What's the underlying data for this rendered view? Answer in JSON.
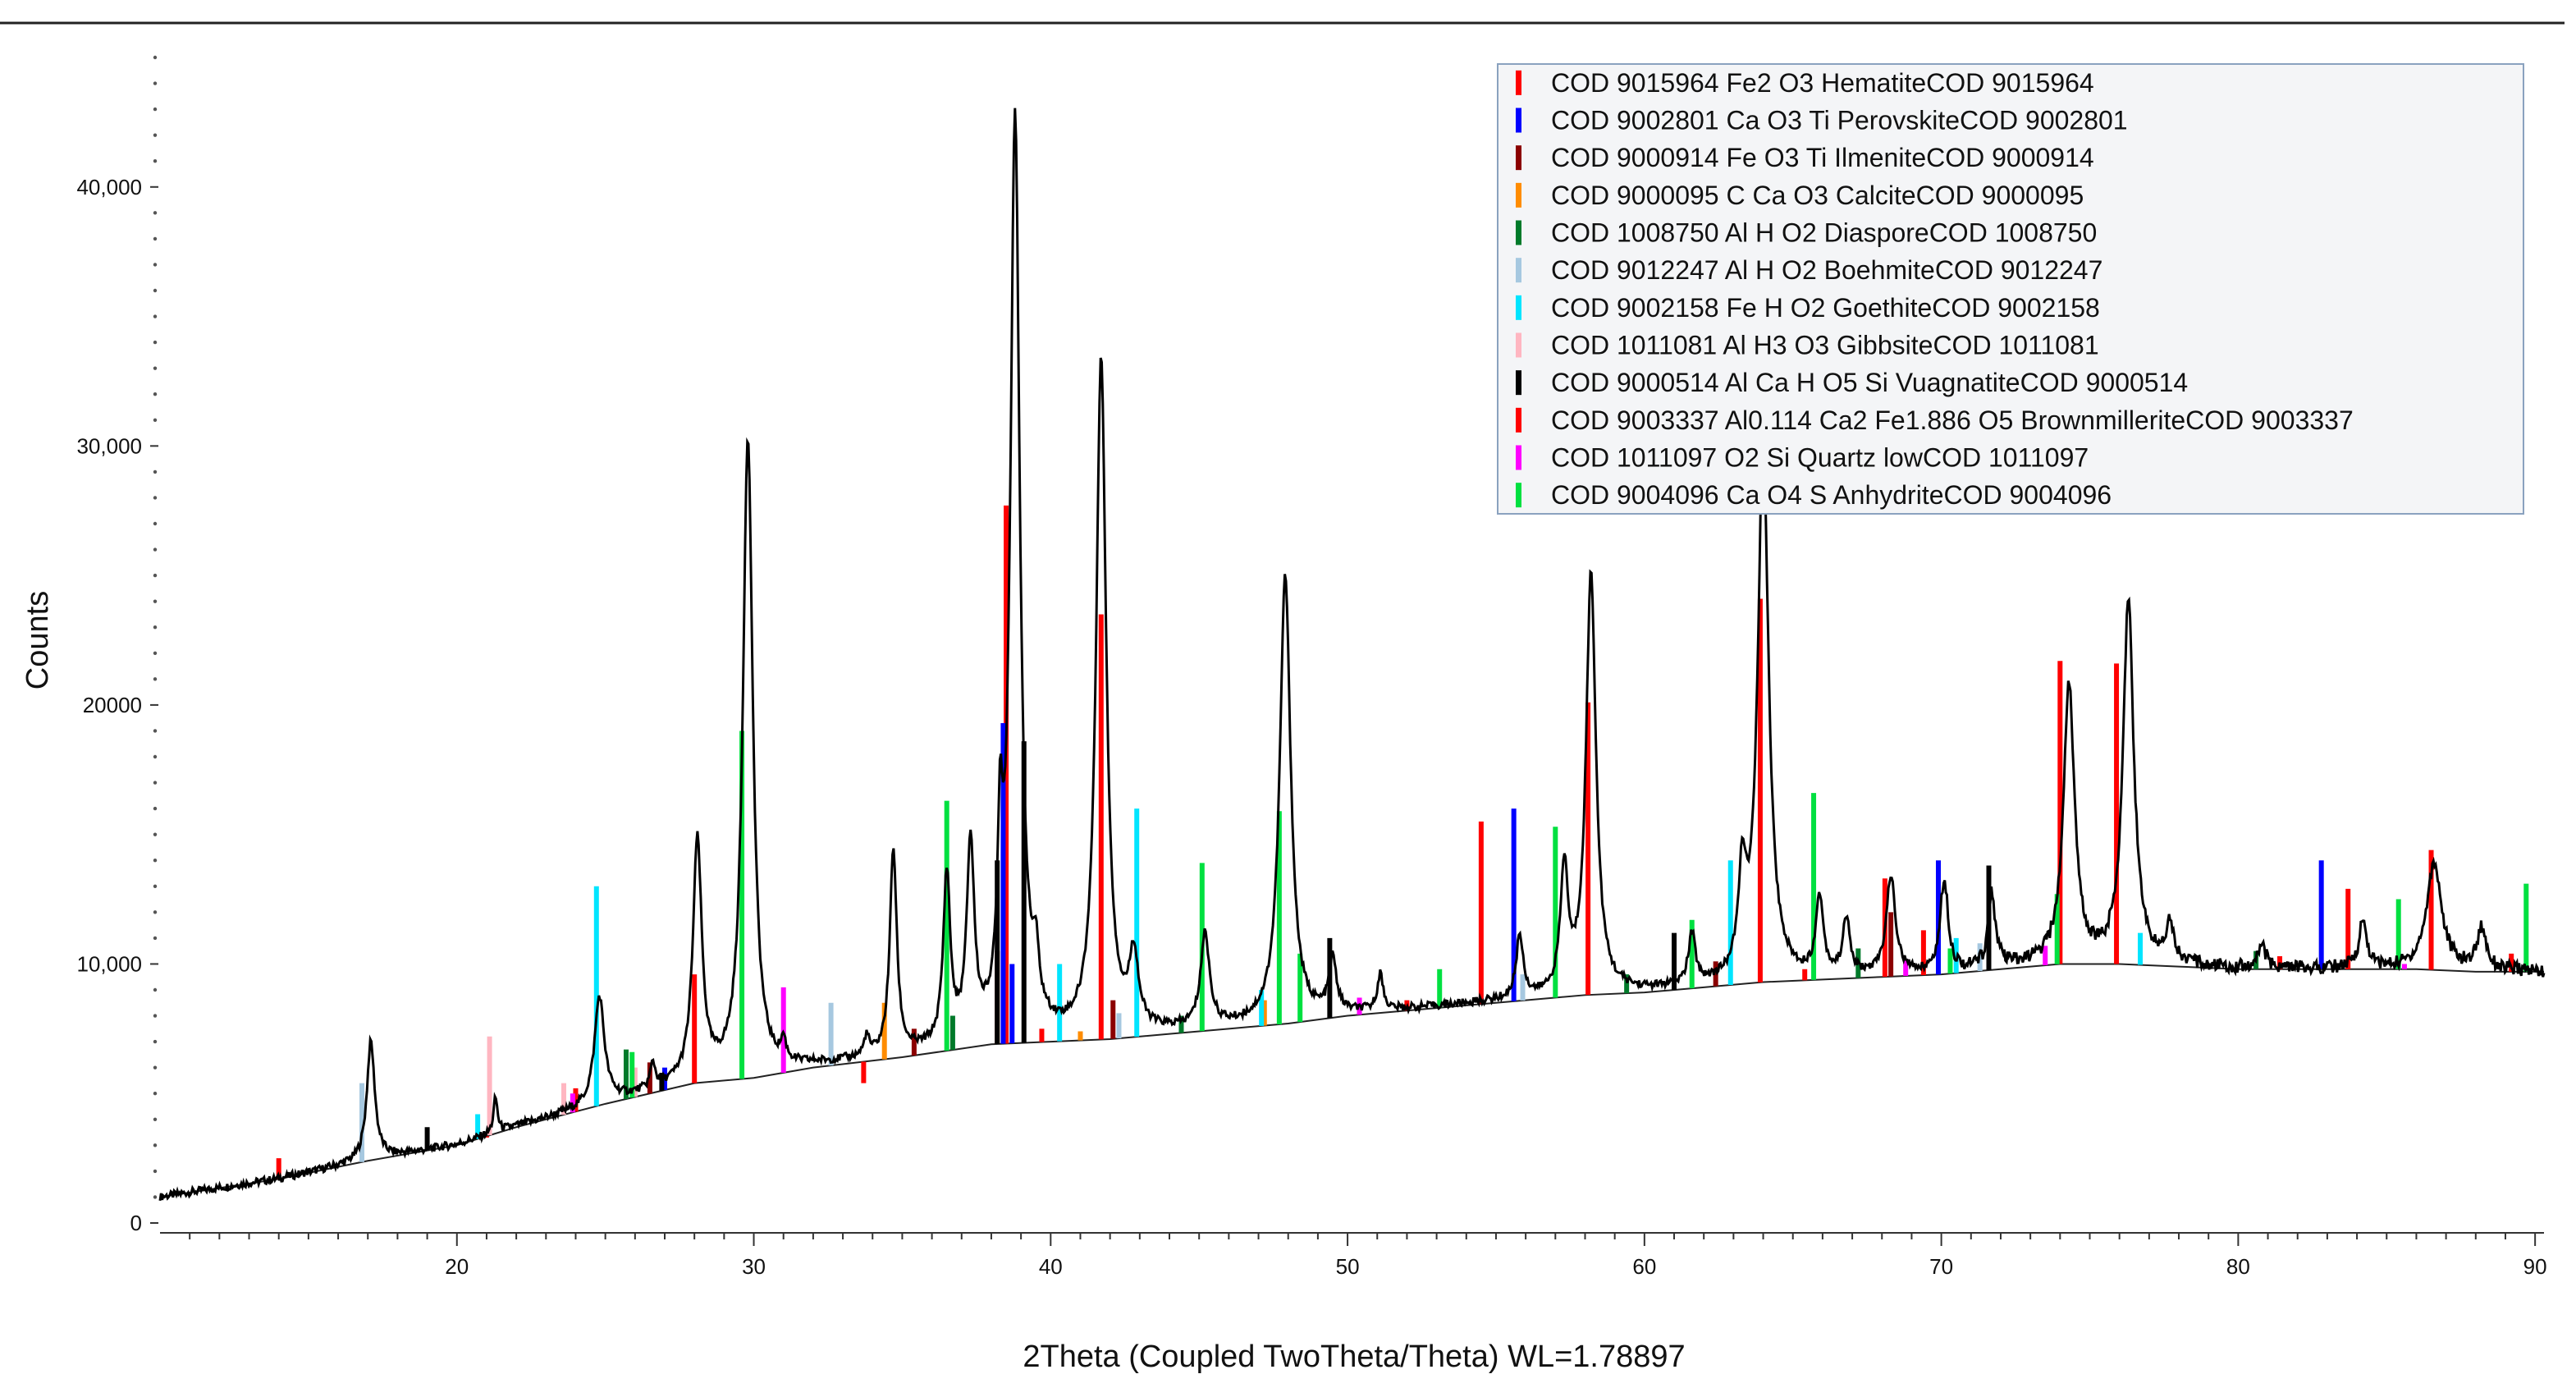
{
  "chart_data": {
    "type": "line",
    "title": "",
    "xlabel": "2Theta (Coupled TwoTheta/Theta) WL=1.78897",
    "ylabel": "Counts",
    "xlim": [
      10,
      90.3
    ],
    "ylim": [
      0,
      45000
    ],
    "x_ticks": [
      20,
      30,
      40,
      50,
      60,
      70,
      80,
      90
    ],
    "y_ticks": [
      0,
      10000,
      20000,
      30000,
      40000
    ],
    "y_tick_labels": [
      "0",
      "10,000",
      "20000",
      "30,000",
      "40,000"
    ],
    "grid": false,
    "legend_position": "top-right",
    "background": {
      "x": [
        10,
        14,
        17,
        20,
        22,
        25,
        28,
        30,
        32,
        35,
        38,
        40,
        42,
        44,
        46,
        48,
        50,
        52,
        54,
        56,
        58,
        60,
        62,
        64,
        66,
        68,
        70,
        72,
        74,
        76,
        78,
        80,
        82,
        84,
        86,
        88,
        90.3
      ],
      "y": [
        1000,
        1700,
        2400,
        3000,
        3700,
        4600,
        5400,
        5600,
        6000,
        6400,
        6900,
        7000,
        7100,
        7300,
        7500,
        7700,
        8000,
        8200,
        8400,
        8600,
        8800,
        8900,
        9100,
        9300,
        9400,
        9500,
        9600,
        9800,
        10000,
        10000,
        9900,
        9800,
        9800,
        9800,
        9800,
        9700,
        9700
      ]
    },
    "peaks": [
      {
        "x": 17.1,
        "y": 7000,
        "w": 0.16
      },
      {
        "x": 21.3,
        "y": 4800,
        "w": 0.08
      },
      {
        "x": 24.8,
        "y": 8700,
        "w": 0.2
      },
      {
        "x": 26.6,
        "y": 6000,
        "w": 0.1
      },
      {
        "x": 28.1,
        "y": 14600,
        "w": 0.18
      },
      {
        "x": 29.8,
        "y": 30300,
        "w": 0.2
      },
      {
        "x": 31.0,
        "y": 6600,
        "w": 0.1
      },
      {
        "x": 33.8,
        "y": 7000,
        "w": 0.1
      },
      {
        "x": 34.7,
        "y": 14300,
        "w": 0.14
      },
      {
        "x": 36.5,
        "y": 13200,
        "w": 0.14
      },
      {
        "x": 37.3,
        "y": 14300,
        "w": 0.15
      },
      {
        "x": 38.3,
        "y": 13300,
        "w": 0.1
      },
      {
        "x": 38.8,
        "y": 42500,
        "w": 0.19
      },
      {
        "x": 39.5,
        "y": 9000,
        "w": 0.12
      },
      {
        "x": 41.7,
        "y": 33300,
        "w": 0.2
      },
      {
        "x": 42.8,
        "y": 10000,
        "w": 0.18
      },
      {
        "x": 45.2,
        "y": 11000,
        "w": 0.18
      },
      {
        "x": 47.9,
        "y": 24900,
        "w": 0.22
      },
      {
        "x": 49.5,
        "y": 10000,
        "w": 0.15
      },
      {
        "x": 51.1,
        "y": 9500,
        "w": 0.12
      },
      {
        "x": 55.8,
        "y": 11000,
        "w": 0.14
      },
      {
        "x": 57.3,
        "y": 13500,
        "w": 0.15
      },
      {
        "x": 58.2,
        "y": 25000,
        "w": 0.2
      },
      {
        "x": 61.6,
        "y": 11000,
        "w": 0.14
      },
      {
        "x": 63.3,
        "y": 13000,
        "w": 0.15
      },
      {
        "x": 64.0,
        "y": 30000,
        "w": 0.22
      },
      {
        "x": 65.9,
        "y": 12400,
        "w": 0.15
      },
      {
        "x": 66.8,
        "y": 11600,
        "w": 0.14
      },
      {
        "x": 68.3,
        "y": 13300,
        "w": 0.18
      },
      {
        "x": 70.1,
        "y": 13200,
        "w": 0.16
      },
      {
        "x": 71.7,
        "y": 12700,
        "w": 0.14
      },
      {
        "x": 74.3,
        "y": 20800,
        "w": 0.22
      },
      {
        "x": 76.3,
        "y": 23900,
        "w": 0.22
      },
      {
        "x": 77.7,
        "y": 11500,
        "w": 0.15
      },
      {
        "x": 80.8,
        "y": 10700,
        "w": 0.15
      },
      {
        "x": 84.2,
        "y": 11600,
        "w": 0.16
      },
      {
        "x": 86.6,
        "y": 13900,
        "w": 0.3
      },
      {
        "x": 88.2,
        "y": 11300,
        "w": 0.2
      }
    ],
    "series": [
      {
        "name": "COD 9015964 Fe2 O3 HematiteCOD 9015964",
        "color": "#ff0000",
        "x": [
          14.0,
          24.0,
          28.0,
          38.5,
          41.7,
          54.5,
          58.1,
          63.9,
          69.4,
          74.0,
          75.9,
          86.5
        ],
        "y": [
          2500,
          5200,
          9600,
          27700,
          23500,
          15500,
          20100,
          24100,
          11300,
          21700,
          21600,
          14400
        ]
      },
      {
        "name": "COD 9002801 Ca O3 Ti PerovskiteCOD 9002801",
        "color": "#0000ff",
        "x": [
          27.0,
          38.4,
          38.7,
          55.6,
          69.9,
          82.8
        ],
        "y": [
          6000,
          19300,
          10000,
          16000,
          14000,
          14000
        ]
      },
      {
        "name": "COD 9000914 Fe O3 Ti IlmeniteCOD 9000914",
        "color": "#8b0000",
        "x": [
          26.5,
          35.4,
          38.2,
          42.1,
          62.4,
          68.3
        ],
        "y": [
          6200,
          7500,
          10500,
          8600,
          10100,
          12000
        ]
      },
      {
        "name": "COD 9000095 C Ca O3 CalciteCOD 9000095",
        "color": "#ff8c00",
        "x": [
          34.4,
          41.0,
          47.2
        ],
        "y": [
          8500,
          7400,
          8600
        ]
      },
      {
        "name": "COD 1008750 Al H O2 DiasporeCOD 1008750",
        "color": "#007a2a",
        "x": [
          25.7,
          36.7,
          44.4,
          59.4,
          67.2,
          80.6
        ],
        "y": [
          6700,
          8000,
          8000,
          9600,
          10600,
          10500
        ]
      },
      {
        "name": "COD 9012247 Al H O2 BoehmiteCOD 9012247",
        "color": "#a6c8e0",
        "x": [
          16.8,
          32.6,
          42.3,
          55.9,
          71.3
        ],
        "y": [
          5400,
          8500,
          8100,
          9600,
          10800
        ]
      },
      {
        "name": "COD 9002158 Fe H O2 GoethiteCOD 9002158",
        "color": "#00e5ff",
        "x": [
          20.7,
          24.7,
          40.3,
          42.9,
          47.1,
          62.9,
          70.5,
          76.7
        ],
        "y": [
          4200,
          13000,
          10000,
          16000,
          9000,
          14000,
          11000,
          11200
        ]
      },
      {
        "name": "COD 1011081 Al H3 O3 GibbsiteCOD 1011081",
        "color": "#ffb6c1",
        "x": [
          21.1,
          23.6,
          26.0
        ],
        "y": [
          7200,
          5400,
          6000
        ]
      },
      {
        "name": "COD 9000514 Al Ca H O5 Si VuagnatiteCOD 9000514",
        "color": "#000000",
        "x": [
          19.0,
          26.9,
          38.2,
          39.1,
          49.4,
          61.0,
          71.6
        ],
        "y": [
          3700,
          5800,
          14000,
          18600,
          11000,
          11200,
          13800
        ]
      },
      {
        "name": "COD 9003337 Al0.114 Ca2 Fe1.886 O5 BrownmilleriteCOD 9003337",
        "color": "#ff0000",
        "x": [
          21.0,
          33.7,
          39.7,
          52.0,
          65.4,
          68.1,
          81.4,
          83.7,
          89.2
        ],
        "y": [
          3300,
          5400,
          7500,
          8600,
          9800,
          13300,
          10300,
          12900,
          10400
        ]
      },
      {
        "name": "COD 1011097 O2 Si Quartz lowCOD 1011097",
        "color": "#ff00ff",
        "x": [
          23.9,
          31.0,
          50.4,
          68.8,
          73.5,
          85.6
        ],
        "y": [
          5000,
          9100,
          8700,
          10200,
          10700,
          10000
        ]
      },
      {
        "name": "COD 9004096 Ca O4 S AnhydriteCOD 9004096",
        "color": "#00e040",
        "x": [
          25.9,
          29.6,
          36.5,
          45.1,
          47.7,
          48.4,
          53.1,
          57.0,
          61.6,
          65.7,
          70.3,
          73.9,
          85.4,
          89.7
        ],
        "y": [
          6600,
          19000,
          16300,
          13900,
          15900,
          10400,
          9800,
          15300,
          11700,
          16600,
          10600,
          12700,
          12500,
          13100
        ]
      }
    ]
  }
}
